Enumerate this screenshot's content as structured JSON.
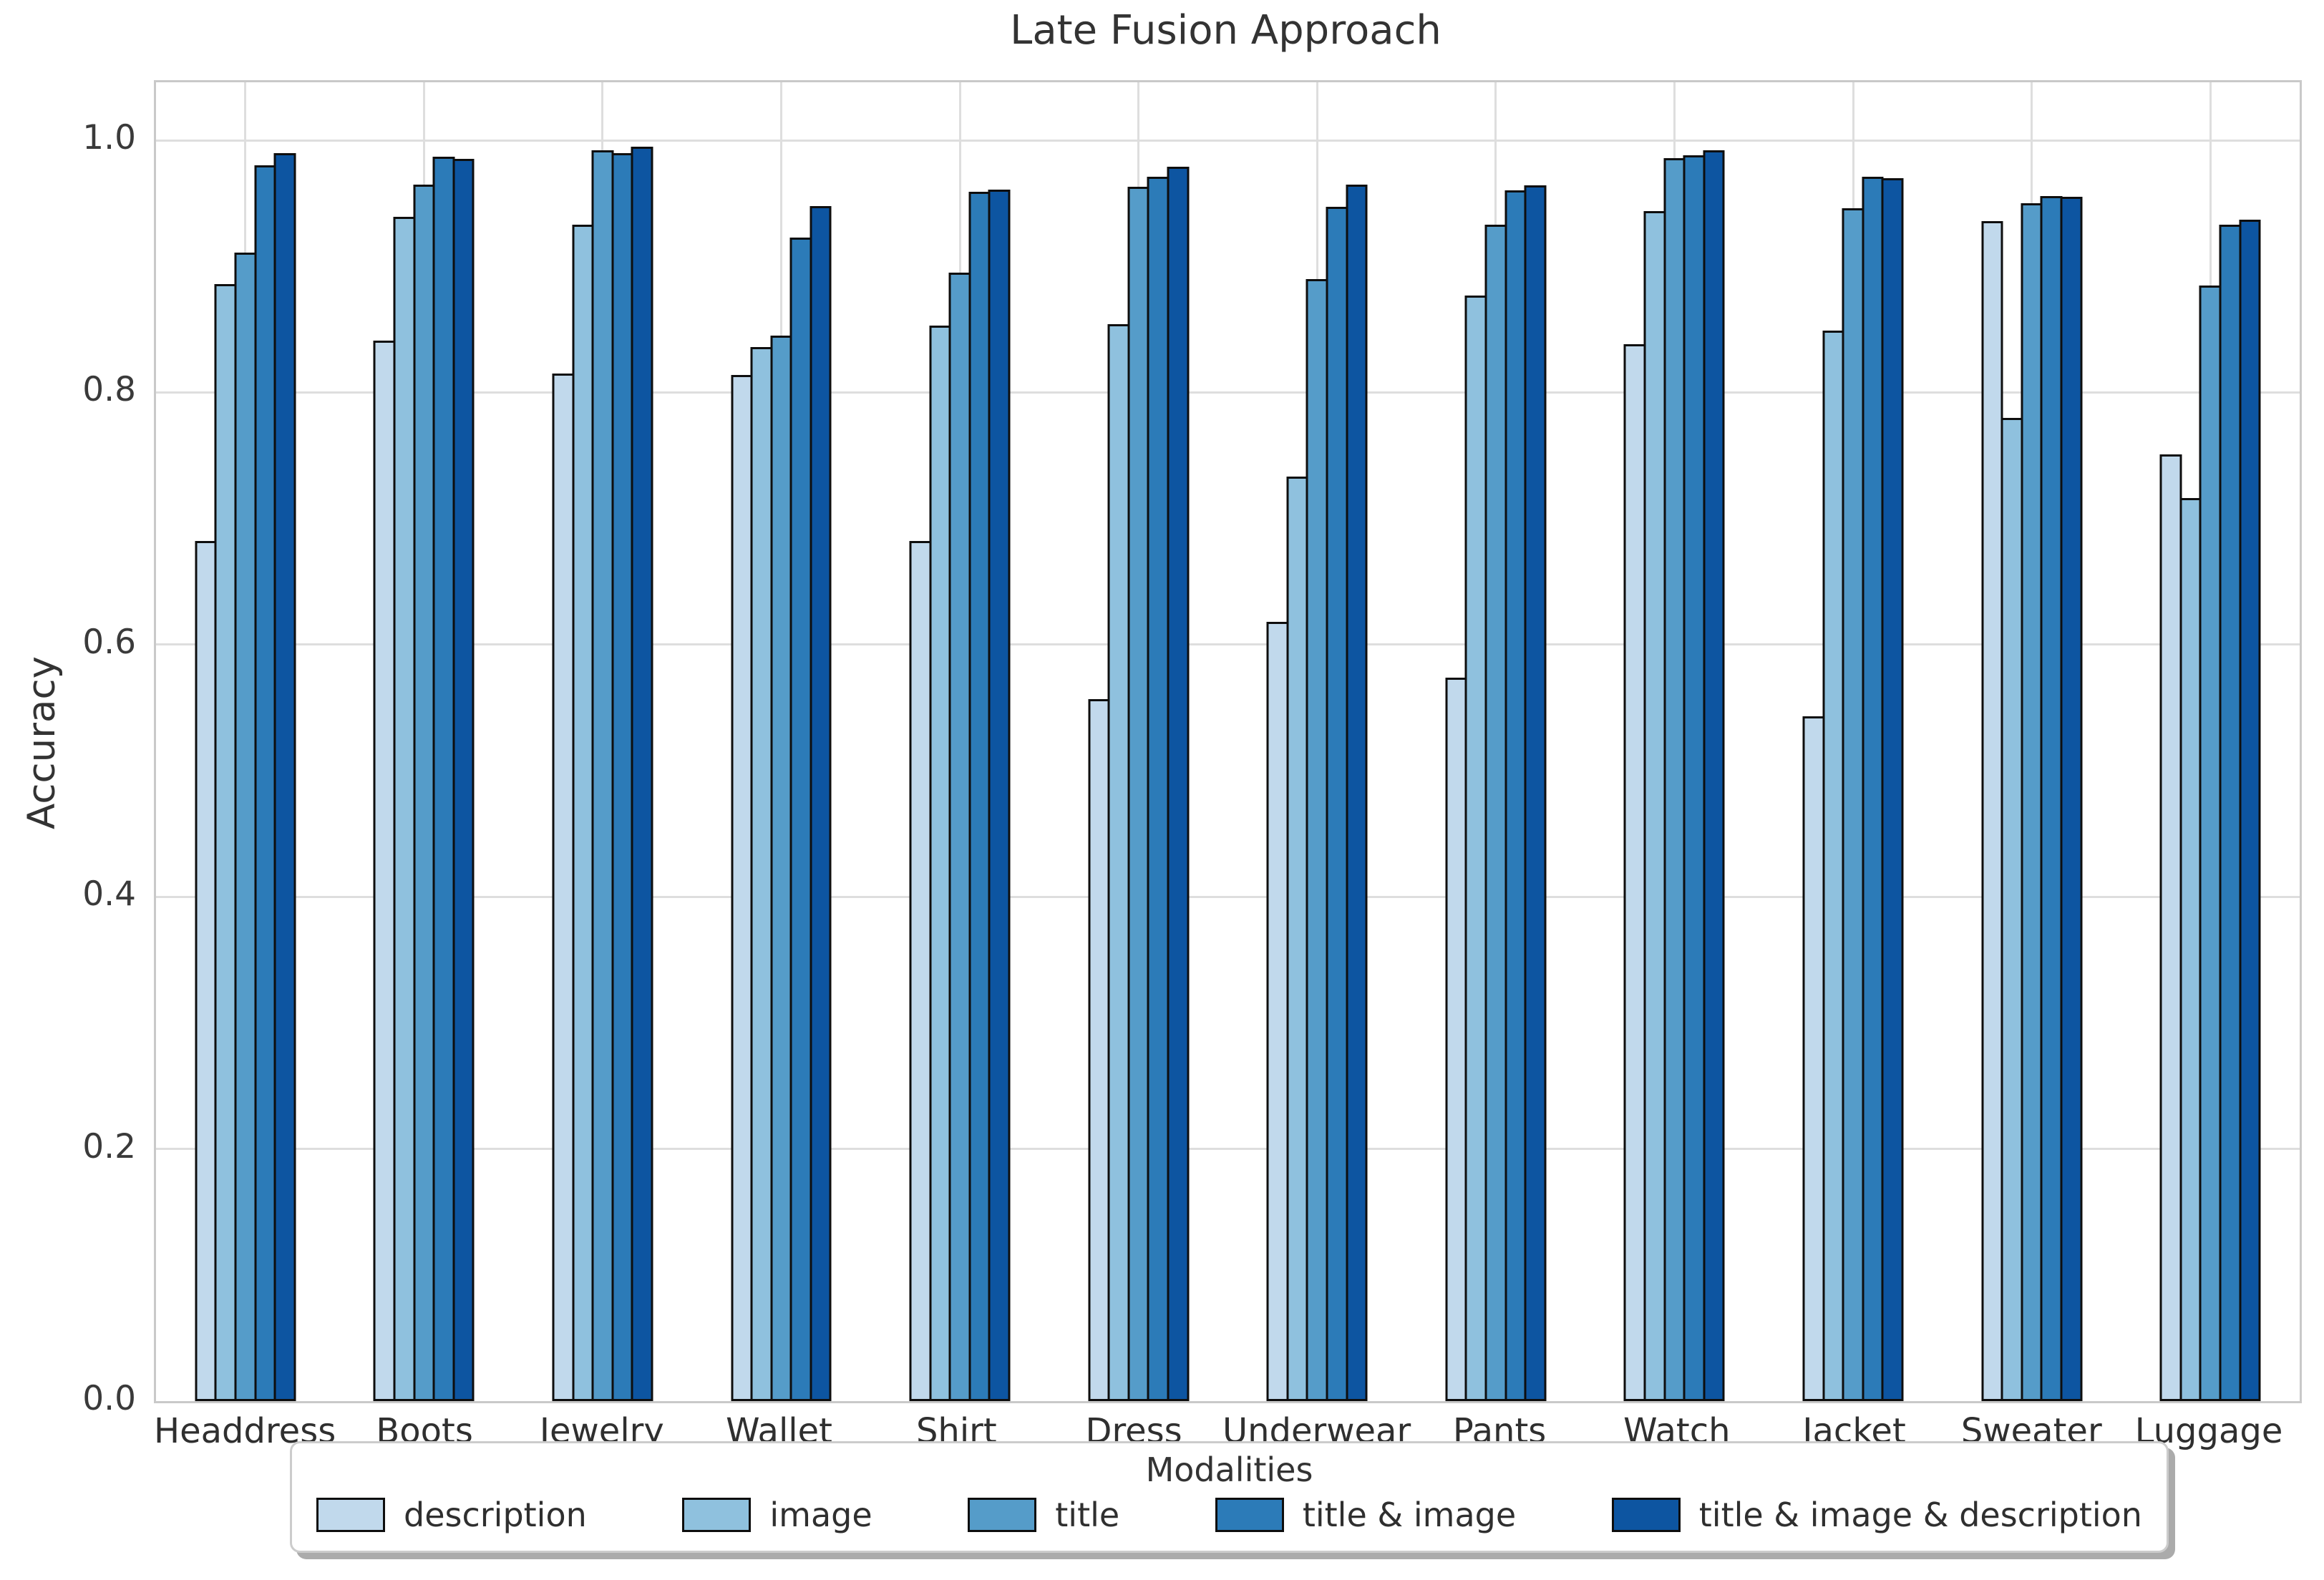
{
  "title": "Late Fusion Approach",
  "ylabel": "Accuracy",
  "legend": {
    "title": "Modalities",
    "position": "bottom"
  },
  "chart_data": {
    "type": "bar",
    "title": "Late Fusion Approach",
    "xlabel": "",
    "ylabel": "Accuracy",
    "ylim": [
      0.0,
      1.046
    ],
    "yticks": [
      "0.0",
      "0.2",
      "0.4",
      "0.6",
      "0.8",
      "1.0"
    ],
    "grid": true,
    "legend_title": "Modalities",
    "legend_position": "bottom",
    "bar_edge_color": "#0e0e0e",
    "categories": [
      "Headdress",
      "Boots",
      "Jewelry",
      "Wallet",
      "Shirt",
      "Dress",
      "Underwear",
      "Pants",
      "Watch",
      "Jacket",
      "Sweater",
      "Luggage"
    ],
    "series": [
      {
        "name": "description",
        "color": "#c1d9ec",
        "values": [
          0.682,
          0.841,
          0.815,
          0.814,
          0.682,
          0.557,
          0.618,
          0.574,
          0.838,
          0.543,
          0.936,
          0.751
        ]
      },
      {
        "name": "image",
        "color": "#8fc1de",
        "values": [
          0.886,
          0.939,
          0.933,
          0.836,
          0.853,
          0.854,
          0.733,
          0.877,
          0.944,
          0.849,
          0.78,
          0.716
        ]
      },
      {
        "name": "title",
        "color": "#559cc9",
        "values": [
          0.911,
          0.965,
          0.992,
          0.845,
          0.895,
          0.963,
          0.89,
          0.933,
          0.986,
          0.946,
          0.95,
          0.885
        ]
      },
      {
        "name": "title & image",
        "color": "#2c7bb8",
        "values": [
          0.98,
          0.987,
          0.99,
          0.923,
          0.959,
          0.971,
          0.947,
          0.96,
          0.988,
          0.971,
          0.956,
          0.933
        ]
      },
      {
        "name": "title & image & description",
        "color": "#0d55a1",
        "values": [
          0.99,
          0.985,
          0.995,
          0.948,
          0.961,
          0.979,
          0.965,
          0.964,
          0.992,
          0.97,
          0.955,
          0.937
        ]
      }
    ]
  }
}
